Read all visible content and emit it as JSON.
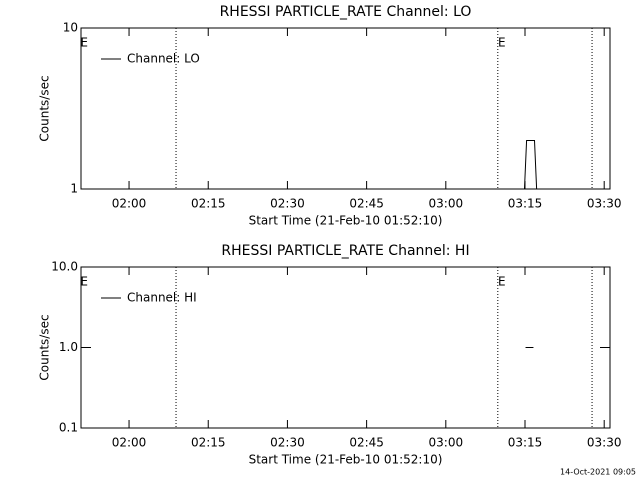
{
  "chart_data": [
    {
      "type": "line",
      "title": "RHESSI PARTICLE_RATE Channel: LO",
      "x_label": "Start Time (21-Feb-10 01:52:10)",
      "y_label": "Counts/sec",
      "xlim": [
        110.9,
        211.1
      ],
      "xticks": [
        {
          "value": 120,
          "label": "02:00"
        },
        {
          "value": 135,
          "label": "02:15"
        },
        {
          "value": 150,
          "label": "02:30"
        },
        {
          "value": 165,
          "label": "02:45"
        },
        {
          "value": 180,
          "label": "03:00"
        },
        {
          "value": 195,
          "label": "03:15"
        },
        {
          "value": 210,
          "label": "03:30"
        }
      ],
      "ylim": [
        1,
        10
      ],
      "yticks": [
        1,
        10
      ],
      "log_y": true,
      "vlines": [
        128.9,
        189.85,
        207.7
      ],
      "annotations": [
        {
          "text": "E",
          "x": 111.5
        },
        {
          "text": "E",
          "x": 190.6
        }
      ],
      "legend": "upper left",
      "series": [
        {
          "name": "Channel: LO",
          "color": "#000000",
          "x": [
            194.9,
            195.3,
            196.8,
            197.2
          ],
          "values": [
            1,
            2,
            2,
            1
          ]
        }
      ]
    },
    {
      "type": "line",
      "title": "RHESSI PARTICLE_RATE Channel: HI",
      "x_label": "Start Time (21-Feb-10 01:52:10)",
      "y_label": "Counts/sec",
      "xlim": [
        110.9,
        211.1
      ],
      "xticks": [
        {
          "value": 120,
          "label": "02:00"
        },
        {
          "value": 135,
          "label": "02:15"
        },
        {
          "value": 150,
          "label": "02:30"
        },
        {
          "value": 165,
          "label": "02:45"
        },
        {
          "value": 180,
          "label": "03:00"
        },
        {
          "value": 195,
          "label": "03:15"
        },
        {
          "value": 210,
          "label": "03:30"
        }
      ],
      "ylim": [
        0.1,
        10
      ],
      "yticks": [
        0.1,
        {
          "value": 1,
          "label": "1.0"
        },
        {
          "value": 10,
          "label": "10.0"
        }
      ],
      "log_y": true,
      "vlines": [
        128.9,
        189.85,
        207.7
      ],
      "annotations": [
        {
          "text": "E",
          "x": 111.5
        },
        {
          "text": "E",
          "x": 190.6
        }
      ],
      "legend": "upper left",
      "series": [
        {
          "name": "Channel: HI",
          "color": "#000000",
          "x": [
            195.1,
            196.6
          ],
          "values": [
            1,
            1
          ]
        }
      ]
    }
  ],
  "footer": "14-Oct-2021 09:05"
}
